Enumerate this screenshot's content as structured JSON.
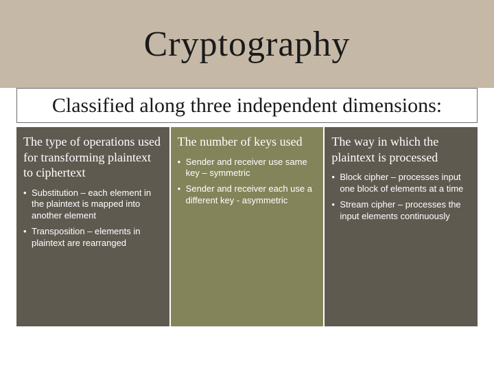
{
  "slide": {
    "title": "Cryptography",
    "subtitle": "Classified along three independent dimensions:",
    "title_band_bg": "#c5b8a6",
    "title_color": "#1a1a1a",
    "title_fontsize": 52,
    "subtitle_bg": "#ffffff",
    "subtitle_border": "#6b6b6b",
    "subtitle_color": "#1a1a1a",
    "subtitle_fontsize": 30,
    "columns": [
      {
        "heading": "The type of operations used for transforming plaintext to ciphertext",
        "bullets": [
          "Substitution – each element in the plaintext is mapped into another element",
          "Transposition – elements in plaintext are rearranged"
        ],
        "bg": "#5f5a50"
      },
      {
        "heading": "The number of keys used",
        "bullets": [
          "Sender and receiver use same key – symmetric",
          "Sender and receiver each use a different key - asymmetric"
        ],
        "bg": "#83845a"
      },
      {
        "heading": "The way in which the plaintext is processed",
        "bullets": [
          "Block cipher – processes input one block of elements at a time",
          "Stream cipher – processes the input elements continuously"
        ],
        "bg": "#5f5a50"
      }
    ],
    "col_heading_fontsize": 18,
    "col_heading_color": "#ffffff",
    "bullet_fontsize": 13,
    "bullet_color": "#ffffff"
  }
}
